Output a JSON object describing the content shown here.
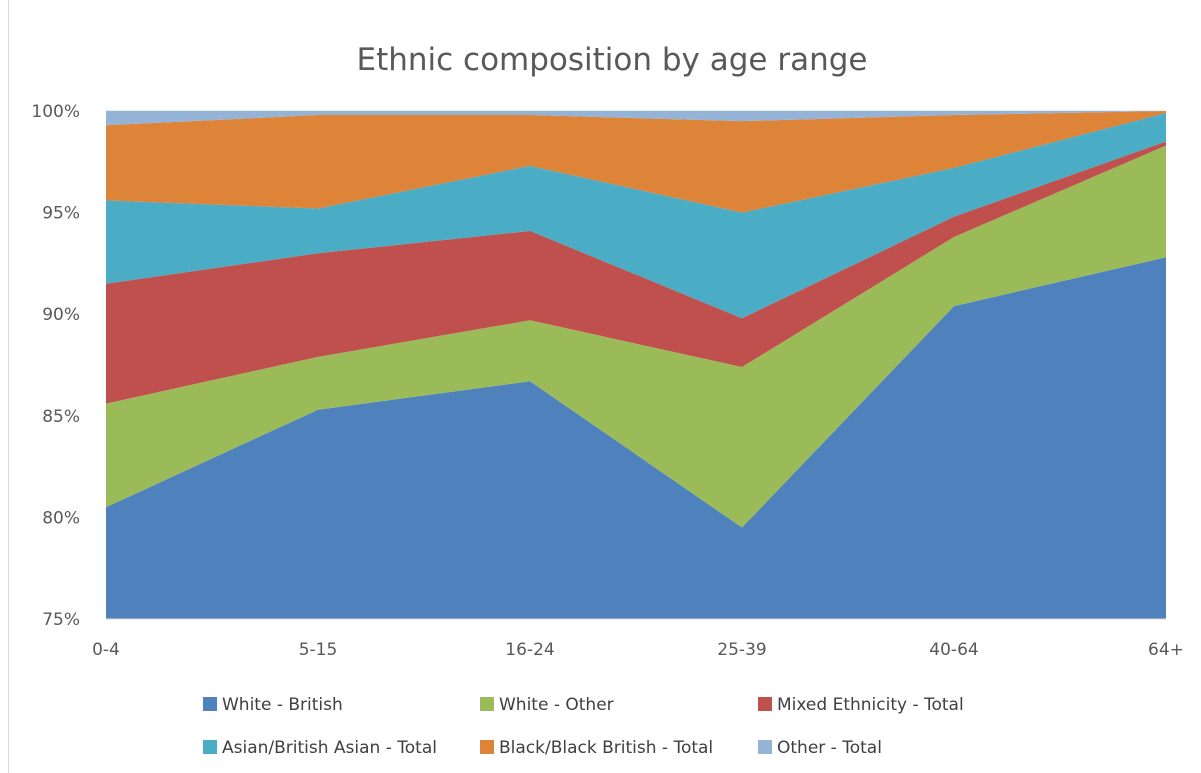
{
  "chart_data": {
    "type": "area",
    "stacked": "percent",
    "title": "Ethnic composition by age range",
    "xlabel": "",
    "ylabel": "",
    "categories": [
      "0-4",
      "5-15",
      "16-24",
      "25-39",
      "40-64",
      "64+"
    ],
    "ylim": [
      0.75,
      1.0
    ],
    "yticks": [
      "75%",
      "80%",
      "85%",
      "90%",
      "95%",
      "100%"
    ],
    "grid": true,
    "legend_position": "bottom",
    "series": [
      {
        "name": "White - British",
        "color": "#4f81bd",
        "values": [
          80.5,
          85.3,
          86.7,
          79.5,
          90.4,
          92.8
        ]
      },
      {
        "name": "White - Other",
        "color": "#9bbb59",
        "values": [
          5.1,
          2.6,
          3.0,
          7.9,
          3.4,
          5.5
        ]
      },
      {
        "name": "Mixed Ethnicity - Total",
        "color": "#c0504d",
        "values": [
          5.9,
          5.1,
          4.4,
          2.4,
          1.0,
          0.2
        ]
      },
      {
        "name": "Asian/British Asian - Total",
        "color": "#4bacc6",
        "values": [
          4.1,
          2.2,
          3.2,
          5.2,
          2.4,
          1.4
        ]
      },
      {
        "name": "Black/Black British - Total",
        "color": "#dd8439",
        "values": [
          3.7,
          4.6,
          2.5,
          4.5,
          2.6,
          0.1
        ]
      },
      {
        "name": "Other - Total",
        "color": "#95b3d7",
        "values": [
          0.7,
          0.2,
          0.2,
          0.5,
          0.2,
          0.0
        ]
      }
    ]
  }
}
